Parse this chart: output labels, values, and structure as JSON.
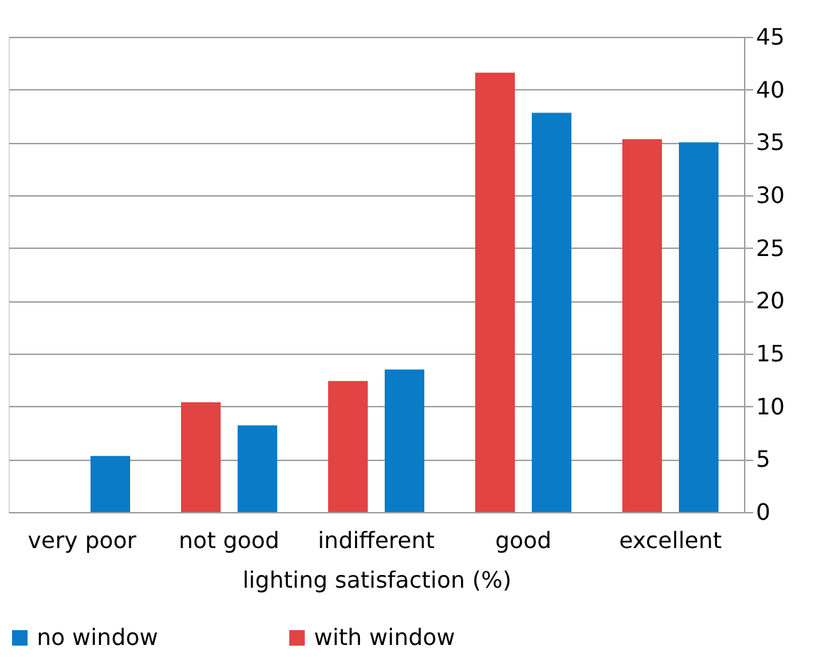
{
  "chart_data": {
    "type": "bar",
    "xlabel": "lighting satisfaction (%)",
    "categories": [
      "very poor",
      "not good",
      "indifferent",
      "good",
      "excellent"
    ],
    "series": [
      {
        "name": "no window",
        "color": "#0a7bc6",
        "values": [
          5.3,
          8.2,
          13.5,
          37.8,
          35.0
        ]
      },
      {
        "name": "with window",
        "color": "#e24343",
        "values": [
          0,
          10.4,
          12.4,
          41.6,
          35.3
        ]
      }
    ],
    "ylim": [
      0,
      45
    ],
    "yticks": [
      0,
      5,
      10,
      15,
      20,
      25,
      30,
      35,
      40,
      45
    ],
    "grid": "y",
    "legend": "bottom"
  }
}
